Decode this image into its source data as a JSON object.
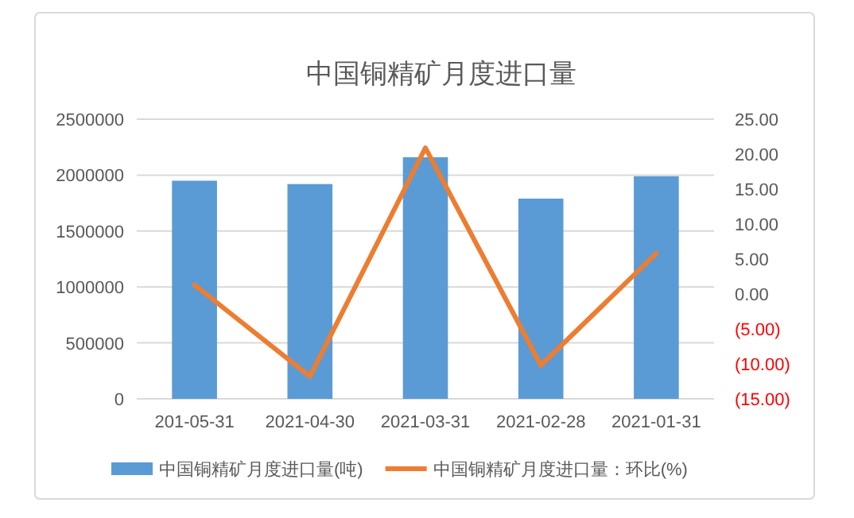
{
  "chart_data": {
    "type": "bar",
    "title": "中国铜精矿月度进口量",
    "categories": [
      "201-05-31",
      "2021-04-30",
      "2021-03-31",
      "2021-02-28",
      "2021-01-31"
    ],
    "series": [
      {
        "name": "中国铜精矿月度进口量(吨)",
        "color": "#5b9bd5",
        "values": [
          1950000,
          1920000,
          2160000,
          1790000,
          1990000
        ]
      },
      {
        "name": "中国铜精矿月度进口量：环比(%)",
        "type": "line",
        "axis": "y2",
        "color": "#ed7d31",
        "values": [
          1.3,
          -11.8,
          20.9,
          -10.2,
          5.8
        ]
      }
    ],
    "ylim": [
      0,
      2500000
    ],
    "yticks": [
      0,
      500000,
      1000000,
      1500000,
      2000000,
      2500000
    ],
    "y2lim": [
      -15,
      25
    ],
    "y2ticks": [
      {
        "value": -15,
        "label": "(15.00)"
      },
      {
        "value": -10,
        "label": "(10.00)"
      },
      {
        "value": -5,
        "label": "(5.00)"
      },
      {
        "value": 0,
        "label": "0.00"
      },
      {
        "value": 5,
        "label": "5.00"
      },
      {
        "value": 10,
        "label": "10.00"
      },
      {
        "value": 15,
        "label": "15.00"
      },
      {
        "value": 20,
        "label": "20.00"
      },
      {
        "value": 25,
        "label": "25.00"
      }
    ],
    "grid": "y",
    "legend": "bottom",
    "marker": "none",
    "line_style": "solid"
  }
}
